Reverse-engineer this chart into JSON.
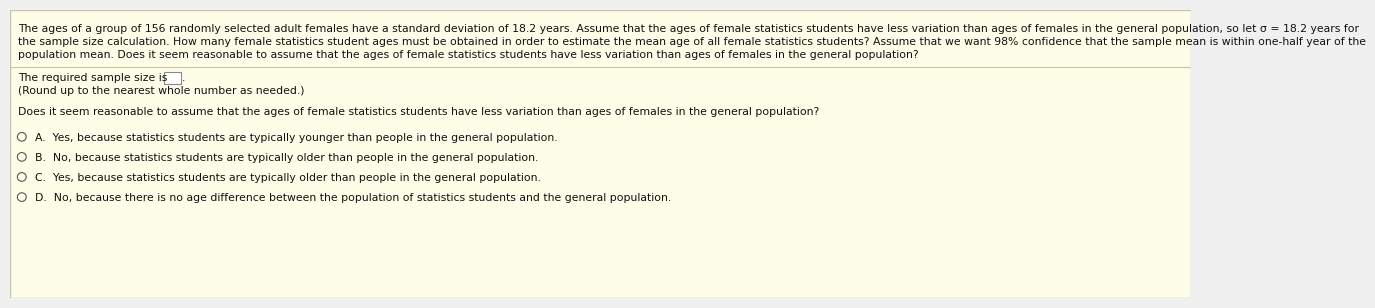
{
  "bg_color": "#fefde8",
  "outer_bg": "#f0f0f0",
  "border_color": "#c8c8a0",
  "divider_color": "#c8c8a0",
  "text_color": "#111111",
  "font_size": 7.8,
  "small_font_size": 7.8,
  "header_line1": "The ages of a group of 156 randomly selected adult females have a standard deviation of 18.2 years. Assume that the ages of female statistics students have less variation than ages of females in the general population, so let σ = 18.2 years for",
  "header_line2": "the sample size calculation. How many female statistics student ages must be obtained in order to estimate the mean age of all female statistics students? Assume that we want 98% confidence that the sample mean is within one-half year of the",
  "header_line3": "population mean. Does it seem reasonable to assume that the ages of female statistics students have less variation than ages of females in the general population?",
  "required_text": "The required sample size is",
  "round_text": "(Round up to the nearest whole number as needed.)",
  "question2": "Does it seem reasonable to assume that the ages of female statistics students have less variation than ages of females in the general population?",
  "options": [
    "A.  Yes, because statistics students are typically younger than people in the general population.",
    "B.  No, because statistics students are typically older than people in the general population.",
    "C.  Yes, because statistics students are typically older than people in the general population.",
    "D.  No, because there is no age difference between the population of statistics students and the general population."
  ],
  "circle_color": "#555555",
  "box_edge_color": "#888888"
}
